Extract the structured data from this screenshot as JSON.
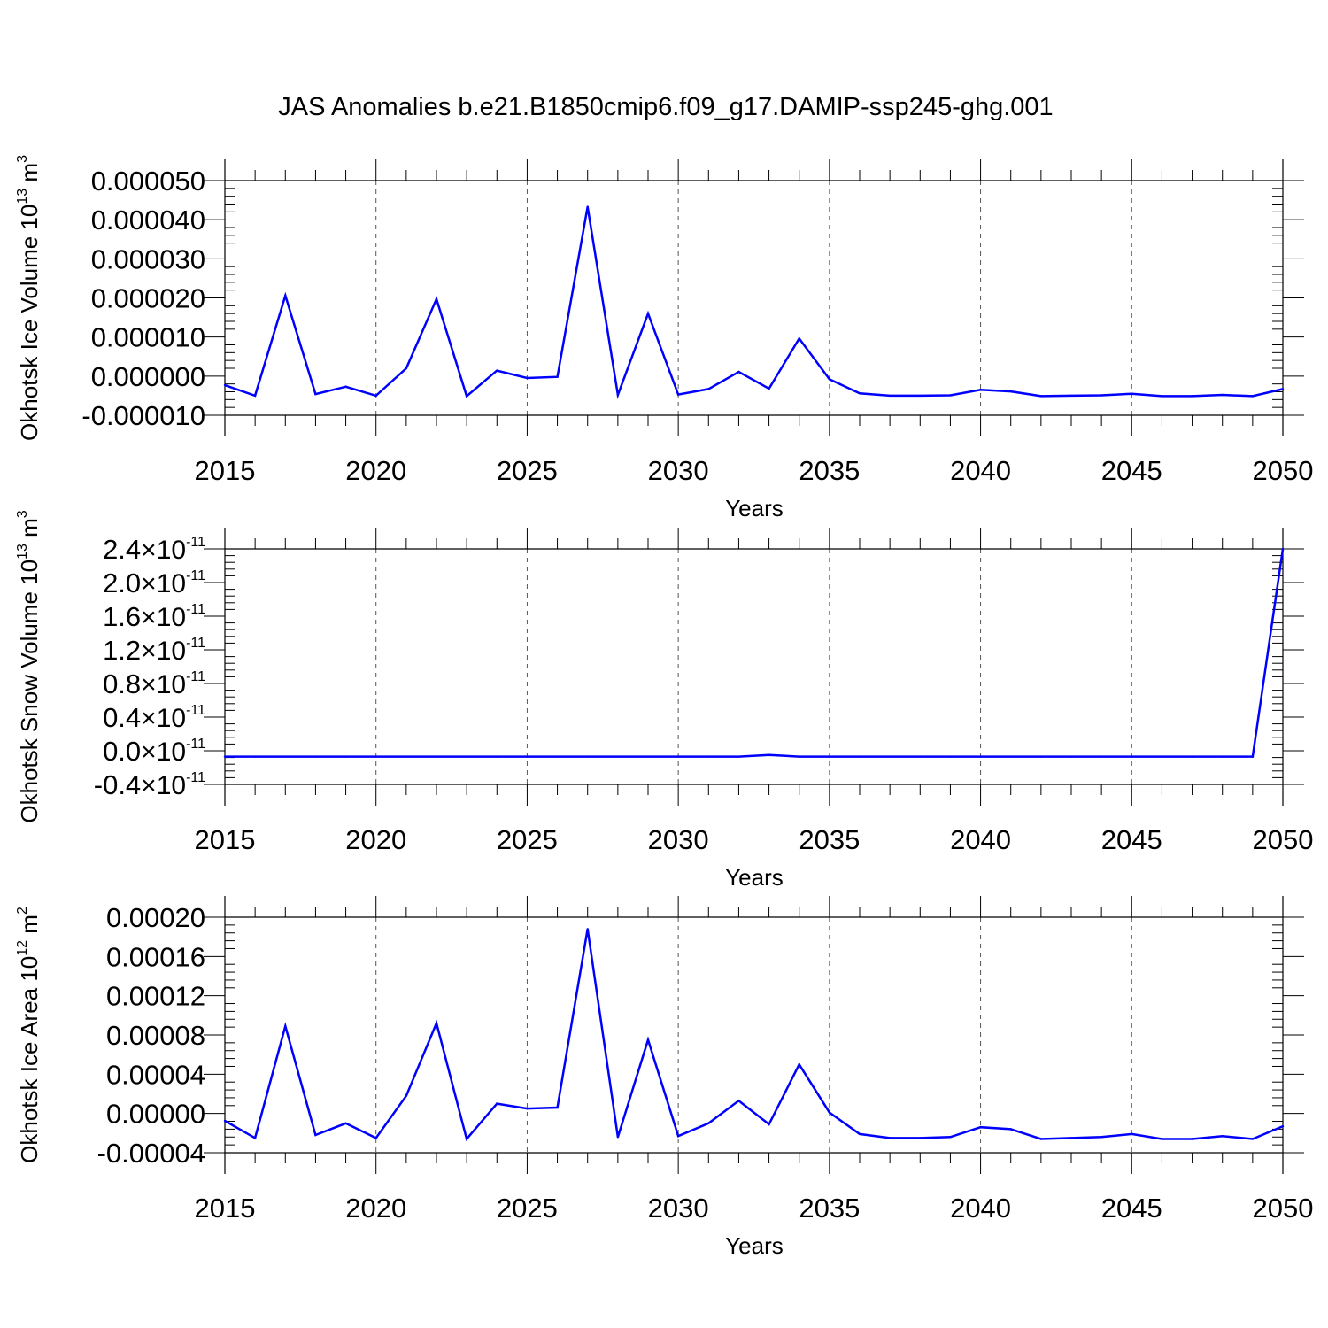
{
  "title": "JAS Anomalies b.e21.B1850cmip6.f09_g17.DAMIP-ssp245-ghg.001",
  "chart_data": [
    {
      "type": "line",
      "ylabel": "Okhotsk Ice Volume 10",
      "ylabel_sup": "13",
      "ylabel_unit": "m",
      "ylabel_unit_sup": "3",
      "xlabel": "Years",
      "xlim": [
        2015,
        2050
      ],
      "ylim": [
        -1e-05,
        5e-05
      ],
      "xticks": [
        "2015",
        "2020",
        "2025",
        "2030",
        "2035",
        "2040",
        "2045",
        "2050"
      ],
      "yticks": [
        "-0.000010",
        "0.000000",
        "0.000010",
        "0.000020",
        "0.000030",
        "0.000040",
        "0.000050"
      ],
      "ytick_values": [
        -1e-05,
        0,
        1e-05,
        2e-05,
        3e-05,
        4e-05,
        5e-05
      ],
      "color": "#0000ff",
      "x": [
        2015,
        2016,
        2017,
        2018,
        2019,
        2020,
        2021,
        2022,
        2023,
        2024,
        2025,
        2026,
        2027,
        2028,
        2029,
        2030,
        2031,
        2032,
        2033,
        2034,
        2035,
        2036,
        2037,
        2038,
        2039,
        2040,
        2041,
        2042,
        2043,
        2044,
        2045,
        2046,
        2047,
        2048,
        2049,
        2050
      ],
      "values": [
        -2.3e-06,
        -5e-06,
        2.06e-05,
        -4.6e-06,
        -2.7e-06,
        -5e-06,
        2e-06,
        1.97e-05,
        -5.1e-06,
        1.4e-06,
        -5e-07,
        -2e-07,
        4.33e-05,
        -4.8e-06,
        1.6e-05,
        -4.7e-06,
        -3.3e-06,
        1.1e-06,
        -3.2e-06,
        9.6e-06,
        -8e-07,
        -4.4e-06,
        -5e-06,
        -5e-06,
        -4.9e-06,
        -3.5e-06,
        -3.9e-06,
        -5.1e-06,
        -5e-06,
        -4.9e-06,
        -4.5e-06,
        -5.1e-06,
        -5.1e-06,
        -4.8e-06,
        -5.1e-06,
        -3.3e-06
      ]
    },
    {
      "type": "line",
      "ylabel": "Okhotsk Snow Volume 10",
      "ylabel_sup": "13",
      "ylabel_unit": "m",
      "ylabel_unit_sup": "3",
      "xlabel": "Years",
      "xlim": [
        2015,
        2050
      ],
      "ylim": [
        -4e-12,
        2.4e-11
      ],
      "xticks": [
        "2015",
        "2020",
        "2025",
        "2030",
        "2035",
        "2040",
        "2045",
        "2050"
      ],
      "yticks": [
        "-0.4",
        "0.0",
        "0.4",
        "0.8",
        "1.2",
        "1.6",
        "2.0",
        "2.4"
      ],
      "ytick_values": [
        -4e-12,
        0,
        4e-12,
        8e-12,
        1.2e-11,
        1.6e-11,
        2e-11,
        2.4e-11
      ],
      "ytick_multiplier": "×10",
      "ytick_exponent": "-11",
      "color": "#0000ff",
      "x": [
        2015,
        2016,
        2017,
        2018,
        2019,
        2020,
        2021,
        2022,
        2023,
        2024,
        2025,
        2026,
        2027,
        2028,
        2029,
        2030,
        2031,
        2032,
        2033,
        2034,
        2035,
        2036,
        2037,
        2038,
        2039,
        2040,
        2041,
        2042,
        2043,
        2044,
        2045,
        2046,
        2047,
        2048,
        2049,
        2050
      ],
      "values": [
        -7e-13,
        -7e-13,
        -7e-13,
        -7e-13,
        -7e-13,
        -7e-13,
        -7e-13,
        -7e-13,
        -7e-13,
        -7e-13,
        -7e-13,
        -7e-13,
        -7e-13,
        -7e-13,
        -7e-13,
        -7e-13,
        -7e-13,
        -7e-13,
        -5e-13,
        -7e-13,
        -7e-13,
        -7e-13,
        -7e-13,
        -7e-13,
        -7e-13,
        -7e-13,
        -7e-13,
        -7e-13,
        -7e-13,
        -7e-13,
        -7e-13,
        -7e-13,
        -7e-13,
        -7e-13,
        -7e-13,
        2.4e-11
      ]
    },
    {
      "type": "line",
      "ylabel": "Okhotsk Ice Area 10",
      "ylabel_sup": "12",
      "ylabel_unit": "m",
      "ylabel_unit_sup": "2",
      "xlabel": "Years",
      "xlim": [
        2015,
        2050
      ],
      "ylim": [
        -4e-05,
        0.0002
      ],
      "xticks": [
        "2015",
        "2020",
        "2025",
        "2030",
        "2035",
        "2040",
        "2045",
        "2050"
      ],
      "yticks": [
        "-0.00004",
        "0.00000",
        "0.00004",
        "0.00008",
        "0.00012",
        "0.00016",
        "0.00020"
      ],
      "ytick_values": [
        -4e-05,
        0,
        4e-05,
        8e-05,
        0.00012,
        0.00016,
        0.0002
      ],
      "color": "#0000ff",
      "x": [
        2015,
        2016,
        2017,
        2018,
        2019,
        2020,
        2021,
        2022,
        2023,
        2024,
        2025,
        2026,
        2027,
        2028,
        2029,
        2030,
        2031,
        2032,
        2033,
        2034,
        2035,
        2036,
        2037,
        2038,
        2039,
        2040,
        2041,
        2042,
        2043,
        2044,
        2045,
        2046,
        2047,
        2048,
        2049,
        2050
      ],
      "values": [
        -7.5e-06,
        -2.5e-05,
        8.9e-05,
        -2.2e-05,
        -1e-05,
        -2.5e-05,
        1.8e-05,
        9.2e-05,
        -2.6e-05,
        1e-05,
        5e-06,
        6e-06,
        0.000188,
        -2.4e-05,
        7.5e-05,
        -2.3e-05,
        -1e-05,
        1.3e-05,
        -1.1e-05,
        5e-05,
        1e-06,
        -2.1e-05,
        -2.5e-05,
        -2.5e-05,
        -2.4e-05,
        -1.4e-05,
        -1.6e-05,
        -2.6e-05,
        -2.5e-05,
        -2.4e-05,
        -2.1e-05,
        -2.6e-05,
        -2.6e-05,
        -2.3e-05,
        -2.6e-05,
        -1.3e-05
      ]
    }
  ]
}
